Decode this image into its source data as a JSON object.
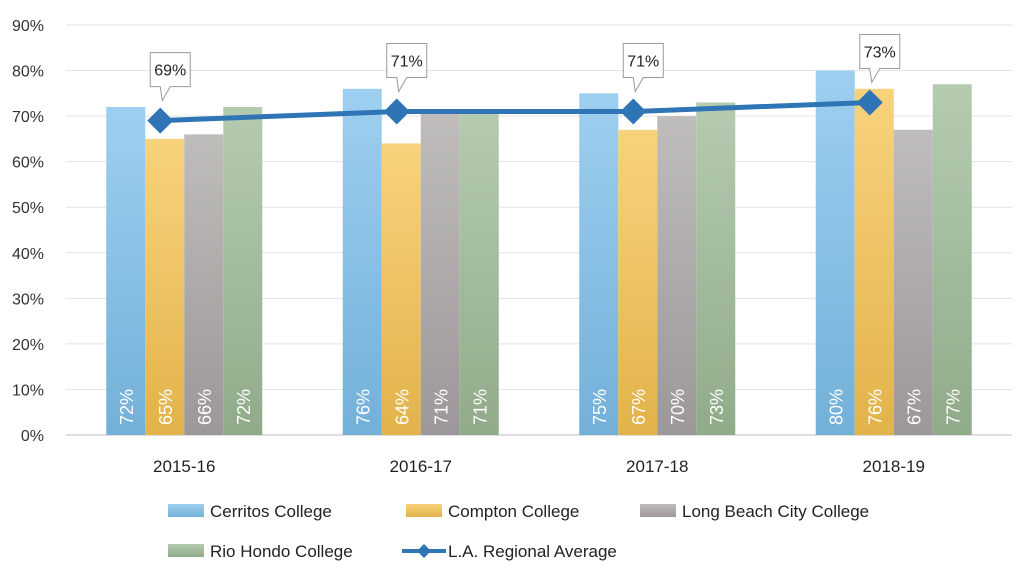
{
  "chart_data": {
    "type": "bar",
    "categories": [
      "2015-16",
      "2016-17",
      "2017-18",
      "2018-19"
    ],
    "series": [
      {
        "name": "Cerritos College",
        "kind": "bar",
        "values": [
          72,
          76,
          75,
          80
        ],
        "labels": [
          "72%",
          "76%",
          "75%",
          "80%"
        ],
        "color": "#7dbfeb"
      },
      {
        "name": "Compton College",
        "kind": "bar",
        "values": [
          65,
          64,
          67,
          76
        ],
        "labels": [
          "65%",
          "64%",
          "67%",
          "76%"
        ],
        "color": "#f6c350"
      },
      {
        "name": "Long Beach City College",
        "kind": "bar",
        "values": [
          66,
          71,
          70,
          67
        ],
        "labels": [
          "66%",
          "71%",
          "70%",
          "67%"
        ],
        "color": "#aaa5a6"
      },
      {
        "name": "Rio Hondo College",
        "kind": "bar",
        "values": [
          72,
          71,
          73,
          77
        ],
        "labels": [
          "72%",
          "71%",
          "73%",
          "77%"
        ],
        "color": "#9cba96"
      },
      {
        "name": "L.A. Regional Average",
        "kind": "line",
        "values": [
          69,
          71,
          71,
          73
        ],
        "labels": [
          "69%",
          "71%",
          "71%",
          "73%"
        ],
        "color": "#2f75b5"
      }
    ],
    "yticks": [
      "0%",
      "10%",
      "20%",
      "30%",
      "40%",
      "50%",
      "60%",
      "70%",
      "80%",
      "90%"
    ],
    "ylim": [
      0,
      90
    ],
    "grid": true,
    "legend": "bottom",
    "title": "",
    "xlabel": "",
    "ylabel": ""
  }
}
